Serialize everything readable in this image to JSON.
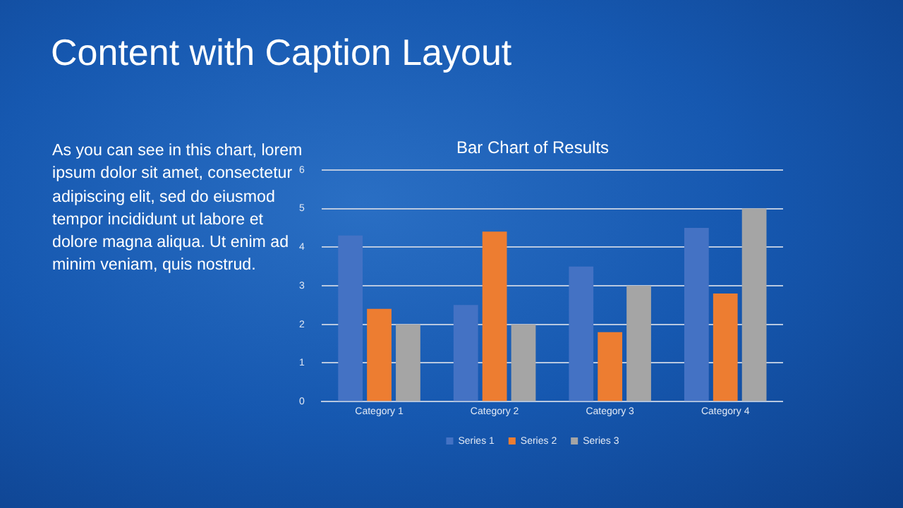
{
  "chart_data": {
    "type": "bar",
    "title": "Bar Chart of Results",
    "annotations": [
      "Content with Caption Layout",
      "As you can see in this chart, lorem ipsum dolor sit amet, consectetur adipiscing elit, sed do eiusmod tempor incididunt ut labore et dolore magna aliqua. Ut enim ad minim veniam, quis nostrud."
    ],
    "categories": [
      "Category 1",
      "Category 2",
      "Category 3",
      "Category 4"
    ],
    "series": [
      {
        "name": "Series 1",
        "color": "#4472c4",
        "values": [
          4.3,
          2.5,
          3.5,
          4.5
        ]
      },
      {
        "name": "Series 2",
        "color": "#ed7d31",
        "values": [
          2.4,
          4.4,
          1.8,
          2.8
        ]
      },
      {
        "name": "Series 3",
        "color": "#a5a5a5",
        "values": [
          2,
          2,
          3,
          5
        ]
      }
    ],
    "ylim": [
      0,
      6
    ],
    "yticks": [
      0,
      1,
      2,
      3,
      4,
      5,
      6
    ],
    "grid": "y",
    "legend": "bottom"
  }
}
